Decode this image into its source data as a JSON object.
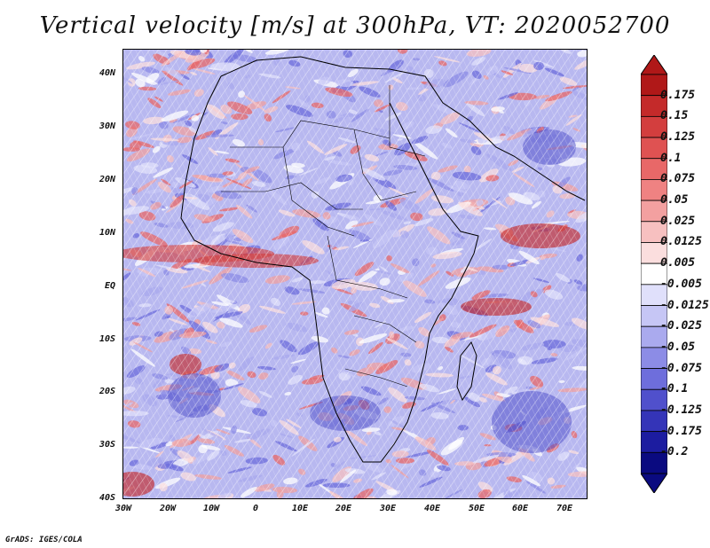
{
  "title": "Vertical velocity [m/s] at 300hPa, VT: 2020052700",
  "footer": "GrADS: IGES/COLA",
  "map": {
    "lat_ticks": [
      "40N",
      "30N",
      "20N",
      "10N",
      "EQ",
      "10S",
      "20S",
      "30S",
      "40S"
    ],
    "lon_ticks": [
      "30W",
      "20W",
      "10W",
      "0",
      "10E",
      "20E",
      "30E",
      "40E",
      "50E",
      "60E",
      "70E"
    ],
    "lat_range": [
      -40,
      45
    ],
    "lon_range": [
      -30,
      75
    ]
  },
  "colorbar": {
    "labels": [
      "0.175",
      "0.15",
      "0.125",
      "0.1",
      "0.075",
      "0.05",
      "0.025",
      "0.0125",
      "0.005",
      "-0.005",
      "-0.0125",
      "-0.025",
      "-0.05",
      "-0.075",
      "-0.1",
      "-0.125",
      "-0.175",
      "-0.2"
    ],
    "colors": [
      "#b01818",
      "#c42a2a",
      "#d33e3e",
      "#df5252",
      "#e86868",
      "#ef8282",
      "#f3a0a0",
      "#f7c0c0",
      "#fbdede",
      "#ffffff",
      "#e0e0fb",
      "#c6c6f5",
      "#aaaaee",
      "#8c8ce6",
      "#6e6edc",
      "#5050cc",
      "#3434b8",
      "#1c1ca0",
      "#0a0a80"
    ]
  }
}
